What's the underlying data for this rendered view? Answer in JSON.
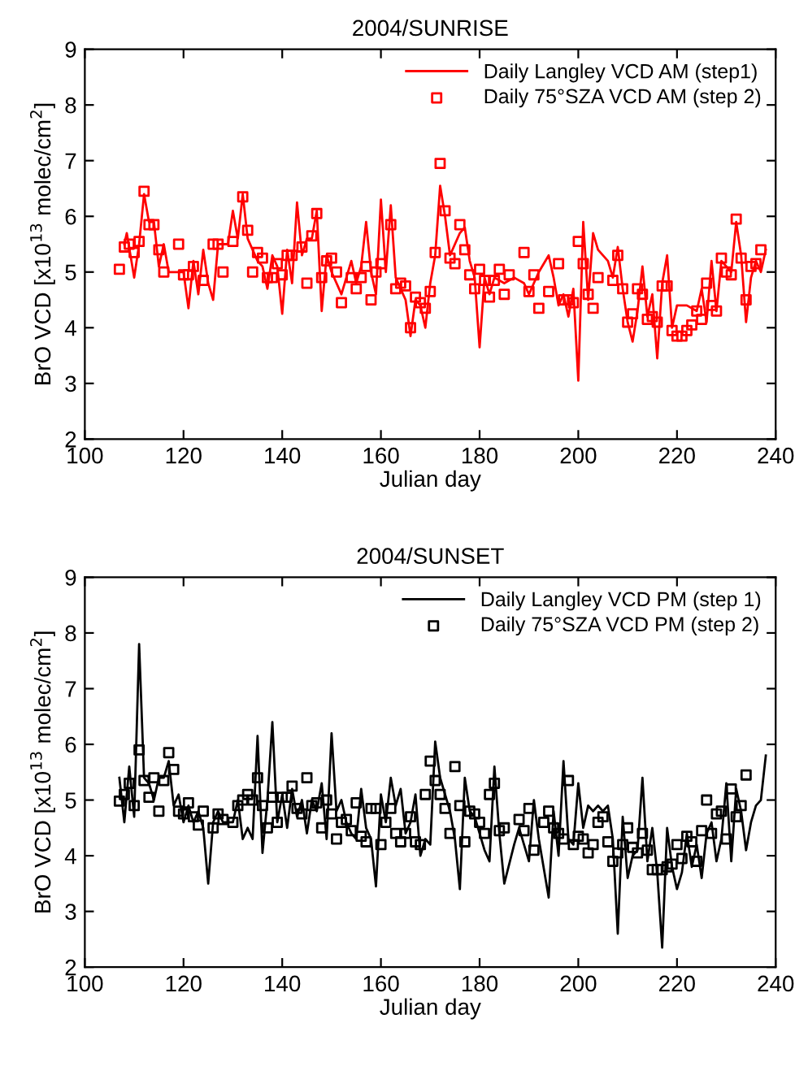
{
  "chart_data": [
    {
      "type": "line",
      "title": "2004/SUNRISE",
      "xlabel": "Julian day",
      "ylabel": "BrO VCD [x10$^{13}$ molec/cm$^{2}$]",
      "xlim": [
        100,
        240
      ],
      "xticks": [
        100,
        120,
        140,
        160,
        180,
        200,
        220,
        240
      ],
      "ylim": [
        2,
        9
      ],
      "yticks": [
        2,
        3,
        4,
        5,
        6,
        7,
        8,
        9
      ],
      "grid": false,
      "legend": "top right",
      "series": [
        {
          "name": "Daily Langley VCD AM (step1)",
          "color": "#ff0000",
          "marker": "none",
          "line_style": "solid",
          "x": [
            108,
            108.5,
            110,
            111,
            112,
            113,
            114,
            115,
            116,
            117,
            120,
            121,
            122,
            123,
            124,
            125,
            126,
            127,
            129,
            130,
            131,
            132,
            133,
            134,
            135,
            136,
            137,
            138,
            139,
            140,
            141,
            142,
            143,
            144,
            145,
            146,
            147,
            148,
            149,
            150,
            152,
            154,
            155,
            156,
            157,
            158,
            159,
            160,
            161,
            162,
            163,
            164,
            165,
            166,
            167,
            168,
            169,
            170,
            171,
            172,
            173,
            174,
            175,
            176,
            177,
            178,
            179,
            180,
            181,
            182,
            183,
            185,
            187,
            189,
            190,
            192,
            194,
            195,
            196,
            197,
            198,
            199,
            200,
            201,
            202,
            203,
            204,
            206,
            207,
            208,
            209,
            210,
            211,
            212,
            213,
            214,
            215,
            216,
            217,
            218,
            219,
            220,
            222,
            224,
            225,
            226,
            227,
            228,
            229,
            231,
            232,
            233,
            234,
            235,
            236,
            237,
            238
          ],
          "values": [
            5.5,
            5.7,
            4.9,
            5.5,
            6.4,
            5.9,
            5.9,
            5.1,
            5.5,
            5.0,
            5.0,
            4.35,
            5.2,
            4.6,
            5.4,
            4.8,
            4.5,
            5.5,
            5.5,
            6.1,
            5.6,
            6.4,
            5.6,
            5.4,
            5.2,
            5.1,
            4.7,
            5.3,
            5.1,
            4.25,
            5.4,
            4.8,
            6.25,
            5.3,
            5.6,
            5.6,
            6.1,
            4.3,
            5.3,
            5.0,
            4.6,
            5.2,
            4.8,
            5.1,
            5.9,
            5.0,
            4.6,
            6.3,
            5.0,
            6.2,
            4.9,
            4.7,
            4.5,
            3.85,
            4.5,
            4.4,
            4.0,
            4.8,
            5.3,
            6.55,
            6.0,
            5.3,
            5.5,
            5.7,
            5.8,
            5.2,
            4.9,
            3.65,
            4.9,
            4.6,
            4.9,
            4.8,
            4.9,
            4.8,
            4.6,
            5.0,
            5.3,
            4.9,
            4.4,
            4.6,
            4.2,
            4.7,
            3.05,
            5.9,
            4.5,
            5.7,
            5.4,
            5.2,
            4.9,
            5.45,
            4.7,
            4.1,
            3.75,
            4.3,
            5.1,
            4.2,
            4.6,
            3.45,
            4.8,
            5.3,
            4.0,
            4.4,
            4.4,
            4.3,
            4.7,
            4.1,
            5.2,
            4.3,
            5.2,
            5.0,
            5.9,
            5.3,
            4.1,
            4.9,
            5.2,
            5.0,
            5.4
          ]
        },
        {
          "name": "Daily 75°SZA VCD AM (step 2)",
          "type": "scatter",
          "color": "#ff0000",
          "marker": "square",
          "x": [
            107,
            108,
            109,
            110,
            111,
            112,
            113,
            114,
            115,
            116,
            119,
            120,
            121,
            122,
            124,
            126,
            127,
            128,
            130,
            132,
            133,
            134,
            135,
            136,
            137,
            138,
            139,
            140,
            141,
            142,
            144,
            145,
            146,
            147,
            148,
            149,
            150,
            151,
            152,
            154,
            155,
            156,
            157,
            158,
            159,
            160,
            162,
            163,
            164,
            165,
            166,
            167,
            168,
            169,
            170,
            171,
            172,
            173,
            174,
            175,
            176,
            177,
            178,
            179,
            180,
            181,
            182,
            183,
            184,
            185,
            186,
            189,
            190,
            191,
            192,
            194,
            196,
            197,
            198,
            199,
            200,
            201,
            202,
            203,
            204,
            207,
            208,
            209,
            210,
            211,
            212,
            213,
            214,
            215,
            216,
            217,
            218,
            219,
            220,
            221,
            222,
            223,
            224,
            225,
            226,
            227,
            228,
            229,
            230,
            231,
            232,
            233,
            234,
            235,
            236,
            237
          ],
          "values": [
            5.05,
            5.45,
            5.5,
            5.35,
            5.55,
            6.45,
            5.85,
            5.85,
            5.4,
            5.0,
            5.5,
            4.95,
            4.95,
            5.1,
            4.85,
            5.5,
            5.5,
            5.0,
            5.55,
            6.35,
            5.75,
            5.0,
            5.35,
            5.25,
            4.9,
            4.9,
            5.15,
            4.95,
            5.3,
            5.3,
            5.45,
            4.8,
            5.65,
            6.05,
            4.9,
            5.2,
            5.25,
            5.0,
            4.45,
            4.9,
            4.7,
            4.9,
            5.1,
            4.5,
            5.0,
            5.15,
            5.85,
            4.7,
            4.8,
            4.75,
            4.0,
            4.55,
            4.45,
            4.35,
            4.65,
            5.35,
            6.95,
            6.1,
            5.25,
            5.15,
            5.85,
            5.4,
            4.95,
            4.7,
            5.05,
            4.85,
            4.55,
            4.85,
            5.05,
            4.6,
            4.95,
            5.35,
            4.65,
            4.95,
            4.35,
            4.65,
            5.15,
            4.5,
            4.5,
            4.45,
            5.55,
            5.15,
            4.6,
            4.35,
            4.9,
            4.85,
            5.3,
            4.7,
            4.1,
            4.25,
            4.7,
            4.6,
            4.15,
            4.2,
            4.1,
            4.75,
            4.75,
            3.95,
            3.85,
            3.85,
            3.95,
            4.05,
            4.3,
            4.15,
            4.8,
            4.4,
            4.3,
            5.25,
            5.0,
            4.95,
            5.95,
            5.25,
            4.5,
            5.1,
            5.15,
            5.4
          ]
        }
      ]
    },
    {
      "type": "line",
      "title": "2004/SUNSET",
      "xlabel": "Julian day",
      "ylabel": "BrO VCD [x10$^{13}$ molec/cm$^{2}$]",
      "xlim": [
        100,
        240
      ],
      "xticks": [
        100,
        120,
        140,
        160,
        180,
        200,
        220,
        240
      ],
      "ylim": [
        2,
        9
      ],
      "yticks": [
        2,
        3,
        4,
        5,
        6,
        7,
        8,
        9
      ],
      "grid": false,
      "legend": "top right",
      "series": [
        {
          "name": "Daily Langley VCD PM (step 1)",
          "color": "#000000",
          "marker": "none",
          "line_style": "solid",
          "x": [
            107,
            108,
            109,
            110,
            111,
            112,
            113,
            114,
            115,
            116,
            117,
            118,
            119,
            120,
            121,
            122,
            123,
            124,
            125,
            126,
            127,
            128,
            130,
            131,
            132,
            133,
            134,
            135,
            136,
            137,
            138,
            139,
            140,
            141,
            142,
            143,
            144,
            145,
            146,
            147,
            148,
            149,
            150,
            151,
            152,
            153,
            154,
            155,
            156,
            157,
            158,
            159,
            160,
            161,
            162,
            163,
            164,
            165,
            166,
            167,
            168,
            169,
            170,
            171,
            172,
            173,
            174,
            175,
            176,
            177,
            178,
            179,
            180,
            181,
            182,
            183,
            184,
            185,
            187,
            188,
            189,
            190,
            191,
            192,
            194,
            195,
            196,
            197,
            198,
            199,
            200,
            201,
            202,
            203,
            204,
            205,
            206,
            207,
            208,
            209,
            210,
            211,
            212,
            213,
            214,
            215,
            216,
            217,
            218,
            219,
            220,
            221,
            222,
            223,
            224,
            225,
            226,
            227,
            228,
            229,
            230,
            231,
            232,
            233,
            234,
            235,
            236,
            237,
            238
          ],
          "values": [
            5.4,
            4.6,
            5.6,
            4.7,
            7.8,
            5.4,
            5.3,
            5.0,
            5.4,
            5.4,
            5.7,
            4.9,
            5.1,
            4.6,
            4.9,
            4.6,
            4.8,
            4.5,
            3.5,
            4.6,
            4.8,
            4.6,
            4.6,
            5.0,
            4.3,
            4.5,
            4.3,
            6.15,
            4.05,
            5.0,
            6.4,
            4.6,
            5.1,
            4.5,
            5.2,
            4.7,
            5.0,
            4.4,
            5.0,
            4.8,
            5.3,
            4.3,
            6.2,
            4.8,
            5.0,
            4.6,
            4.4,
            4.3,
            5.2,
            4.5,
            4.3,
            3.45,
            5.1,
            4.6,
            5.4,
            4.9,
            5.2,
            4.4,
            4.6,
            5.1,
            4.0,
            4.3,
            4.2,
            6.05,
            5.4,
            5.1,
            4.8,
            4.3,
            3.4,
            5.4,
            4.8,
            4.7,
            4.4,
            4.1,
            3.9,
            5.6,
            4.4,
            3.5,
            4.2,
            4.5,
            4.2,
            3.9,
            5.0,
            4.3,
            3.25,
            4.8,
            4.0,
            5.7,
            4.3,
            4.2,
            5.3,
            4.5,
            4.9,
            4.8,
            4.9,
            4.8,
            4.9,
            4.3,
            2.6,
            4.7,
            3.6,
            4.0,
            4.1,
            5.4,
            3.9,
            4.5,
            3.7,
            2.35,
            4.5,
            3.8,
            3.4,
            3.7,
            4.4,
            3.8,
            4.2,
            3.6,
            4.4,
            4.6,
            3.9,
            4.3,
            5.3,
            3.9,
            5.2,
            4.8,
            4.1,
            4.6,
            4.9,
            5.0,
            5.8
          ]
        },
        {
          "name": "Daily 75°SZA VCD PM (step 2)",
          "type": "scatter",
          "color": "#000000",
          "marker": "square",
          "x": [
            107,
            108,
            109,
            110,
            111,
            112,
            113,
            114,
            115,
            116,
            117,
            118,
            119,
            120,
            121,
            122,
            123,
            124,
            126,
            127,
            128,
            130,
            131,
            132,
            133,
            134,
            135,
            136,
            137,
            138,
            139,
            140,
            141,
            142,
            143,
            144,
            145,
            146,
            147,
            148,
            149,
            150,
            151,
            152,
            153,
            154,
            155,
            156,
            157,
            158,
            159,
            160,
            161,
            162,
            163,
            164,
            165,
            166,
            167,
            168,
            169,
            170,
            171,
            172,
            173,
            174,
            175,
            176,
            177,
            178,
            179,
            180,
            181,
            182,
            183,
            184,
            185,
            188,
            189,
            190,
            191,
            193,
            194,
            195,
            196,
            197,
            198,
            199,
            200,
            201,
            202,
            203,
            204,
            205,
            206,
            207,
            208,
            209,
            210,
            211,
            212,
            213,
            214,
            215,
            216,
            217,
            218,
            219,
            220,
            221,
            222,
            223,
            224,
            225,
            226,
            227,
            228,
            229,
            230,
            231,
            232,
            233,
            234
          ],
          "values": [
            4.98,
            5.1,
            5.3,
            4.9,
            5.9,
            5.35,
            5.05,
            5.4,
            4.8,
            5.35,
            5.85,
            5.55,
            4.8,
            4.75,
            4.95,
            4.7,
            4.55,
            4.8,
            4.5,
            4.75,
            4.65,
            4.6,
            4.9,
            5.0,
            5.1,
            5.0,
            5.4,
            4.9,
            4.5,
            5.05,
            4.6,
            5.05,
            5.05,
            5.25,
            4.85,
            4.75,
            5.4,
            4.9,
            4.95,
            4.5,
            5.0,
            4.75,
            4.3,
            4.6,
            4.65,
            4.45,
            4.95,
            4.35,
            4.25,
            4.85,
            4.85,
            4.2,
            4.6,
            4.85,
            4.4,
            4.25,
            4.4,
            4.7,
            4.25,
            4.2,
            5.1,
            5.7,
            5.35,
            5.1,
            4.85,
            4.4,
            5.6,
            4.9,
            4.25,
            4.8,
            4.75,
            4.6,
            4.4,
            5.1,
            5.3,
            4.45,
            4.5,
            4.65,
            4.45,
            4.85,
            4.1,
            4.6,
            4.8,
            4.5,
            4.4,
            4.3,
            5.35,
            4.2,
            4.35,
            4.3,
            4.05,
            4.2,
            4.6,
            4.7,
            4.25,
            3.9,
            4.05,
            4.2,
            4.5,
            4.15,
            4.05,
            4.4,
            4.1,
            3.75,
            3.75,
            3.75,
            3.8,
            3.85,
            4.2,
            3.95,
            4.35,
            4.25,
            3.9,
            4.45,
            5.0,
            4.4,
            4.75,
            4.8,
            4.3,
            5.2,
            4.7,
            4.9,
            5.45
          ]
        }
      ]
    }
  ]
}
